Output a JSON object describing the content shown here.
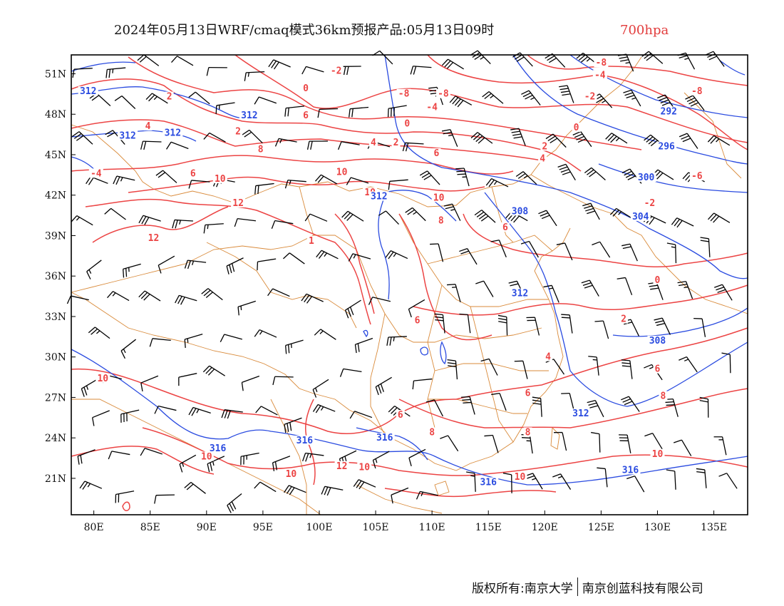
{
  "header": {
    "title": "2024年05月13日WRF/cmaq模式36km预报产品:05月13日09时",
    "level": "700hpa"
  },
  "colors": {
    "temperature": "#ec4444",
    "theta_e": "#2a4be0",
    "borders": "#d98a3a",
    "barbs": "#000000",
    "level_text": "#e23c3c"
  },
  "icons": [
    "wind-barb-icon"
  ],
  "chart_data": {
    "type": "map",
    "projection": "lat-lon",
    "xlim": [
      78,
      138
    ],
    "ylim": [
      18.3,
      52.4
    ],
    "x_ticks": [
      "80E",
      "85E",
      "90E",
      "95E",
      "100E",
      "105E",
      "110E",
      "115E",
      "120E",
      "125E",
      "130E",
      "135E"
    ],
    "x_tick_values": [
      80,
      85,
      90,
      95,
      100,
      105,
      110,
      115,
      120,
      125,
      130,
      135
    ],
    "y_ticks": [
      "51N",
      "48N",
      "45N",
      "42N",
      "39N",
      "36N",
      "33N",
      "30N",
      "27N",
      "24N",
      "21N"
    ],
    "y_tick_values": [
      51,
      48,
      45,
      42,
      39,
      36,
      33,
      30,
      27,
      24,
      21
    ],
    "temperature_labels": [
      {
        "text": "-8",
        "lon": 125.0,
        "lat": 51.7
      },
      {
        "text": "-4",
        "lon": 124.9,
        "lat": 50.8
      },
      {
        "text": "-2",
        "lon": 101.5,
        "lat": 51.1
      },
      {
        "text": "-8",
        "lon": 133.5,
        "lat": 49.6
      },
      {
        "text": "-8",
        "lon": 107.5,
        "lat": 49.4
      },
      {
        "text": "-8",
        "lon": 111.0,
        "lat": 49.4
      },
      {
        "text": "-2",
        "lon": 124.0,
        "lat": 49.2
      },
      {
        "text": "0",
        "lon": 98.8,
        "lat": 49.8
      },
      {
        "text": "2",
        "lon": 86.7,
        "lat": 49.2
      },
      {
        "text": "-4",
        "lon": 110.0,
        "lat": 48.4
      },
      {
        "text": "6",
        "lon": 98.8,
        "lat": 47.8
      },
      {
        "text": "4",
        "lon": 84.8,
        "lat": 47.0
      },
      {
        "text": "0",
        "lon": 107.8,
        "lat": 47.2
      },
      {
        "text": "0",
        "lon": 122.8,
        "lat": 46.9
      },
      {
        "text": "2",
        "lon": 92.8,
        "lat": 46.6
      },
      {
        "text": "4",
        "lon": 104.8,
        "lat": 45.8
      },
      {
        "text": "2",
        "lon": 106.8,
        "lat": 45.8
      },
      {
        "text": "2",
        "lon": 120.0,
        "lat": 45.5
      },
      {
        "text": "8",
        "lon": 94.8,
        "lat": 45.3
      },
      {
        "text": "6",
        "lon": 110.4,
        "lat": 45.0
      },
      {
        "text": "4",
        "lon": 119.8,
        "lat": 44.6
      },
      {
        "text": "-6",
        "lon": 133.5,
        "lat": 43.3
      },
      {
        "text": "6",
        "lon": 88.8,
        "lat": 43.5
      },
      {
        "text": "10",
        "lon": 91.2,
        "lat": 43.1
      },
      {
        "text": "10",
        "lon": 102.0,
        "lat": 43.6
      },
      {
        "text": "-4",
        "lon": 80.2,
        "lat": 43.5
      },
      {
        "text": "10",
        "lon": 104.5,
        "lat": 42.1
      },
      {
        "text": "10",
        "lon": 110.6,
        "lat": 41.7
      },
      {
        "text": "-2",
        "lon": 129.3,
        "lat": 41.3
      },
      {
        "text": "12",
        "lon": 92.8,
        "lat": 41.3
      },
      {
        "text": "8",
        "lon": 110.8,
        "lat": 40.0
      },
      {
        "text": "6",
        "lon": 116.5,
        "lat": 39.5
      },
      {
        "text": "12",
        "lon": 85.3,
        "lat": 38.7
      },
      {
        "text": "1",
        "lon": 99.3,
        "lat": 38.5
      },
      {
        "text": "0",
        "lon": 130.0,
        "lat": 35.6
      },
      {
        "text": "2",
        "lon": 127.0,
        "lat": 32.7
      },
      {
        "text": "6",
        "lon": 108.7,
        "lat": 32.6
      },
      {
        "text": "4",
        "lon": 120.3,
        "lat": 29.9
      },
      {
        "text": "6",
        "lon": 130.0,
        "lat": 29.0
      },
      {
        "text": "10",
        "lon": 80.8,
        "lat": 28.3
      },
      {
        "text": "6",
        "lon": 118.5,
        "lat": 27.2
      },
      {
        "text": "8",
        "lon": 130.5,
        "lat": 27.0
      },
      {
        "text": "6",
        "lon": 107.2,
        "lat": 25.6
      },
      {
        "text": "8",
        "lon": 110.0,
        "lat": 24.3
      },
      {
        "text": "8",
        "lon": 118.5,
        "lat": 24.3
      },
      {
        "text": "10",
        "lon": 130.0,
        "lat": 22.7
      },
      {
        "text": "10",
        "lon": 90.0,
        "lat": 22.5
      },
      {
        "text": "12",
        "lon": 102.0,
        "lat": 21.8
      },
      {
        "text": "10",
        "lon": 104.0,
        "lat": 21.7
      },
      {
        "text": "10",
        "lon": 97.5,
        "lat": 21.2
      },
      {
        "text": "10",
        "lon": 117.8,
        "lat": 21.0
      }
    ],
    "theta_e_labels": [
      {
        "text": "312",
        "lon": 79.5,
        "lat": 49.6
      },
      {
        "text": "312",
        "lon": 93.8,
        "lat": 47.8
      },
      {
        "text": "312",
        "lon": 83.0,
        "lat": 46.3
      },
      {
        "text": "312",
        "lon": 87.0,
        "lat": 46.5
      },
      {
        "text": "292",
        "lon": 131.0,
        "lat": 48.1
      },
      {
        "text": "296",
        "lon": 130.8,
        "lat": 45.5
      },
      {
        "text": "300",
        "lon": 129.0,
        "lat": 43.2
      },
      {
        "text": "312",
        "lon": 105.3,
        "lat": 41.8
      },
      {
        "text": "308",
        "lon": 117.8,
        "lat": 40.7
      },
      {
        "text": "304",
        "lon": 128.5,
        "lat": 40.3
      },
      {
        "text": "312",
        "lon": 117.8,
        "lat": 34.6
      },
      {
        "text": "308",
        "lon": 130.0,
        "lat": 31.1
      },
      {
        "text": "312",
        "lon": 123.2,
        "lat": 25.7
      },
      {
        "text": "316",
        "lon": 91.0,
        "lat": 23.1
      },
      {
        "text": "316",
        "lon": 98.7,
        "lat": 23.7
      },
      {
        "text": "316",
        "lon": 105.8,
        "lat": 23.9
      },
      {
        "text": "316",
        "lon": 127.6,
        "lat": 21.5
      },
      {
        "text": "316",
        "lon": 115.0,
        "lat": 20.6
      }
    ]
  },
  "footer": {
    "copyright_left": "版权所有:南京大学",
    "copyright_right": "南京创蓝科技有限公司"
  }
}
